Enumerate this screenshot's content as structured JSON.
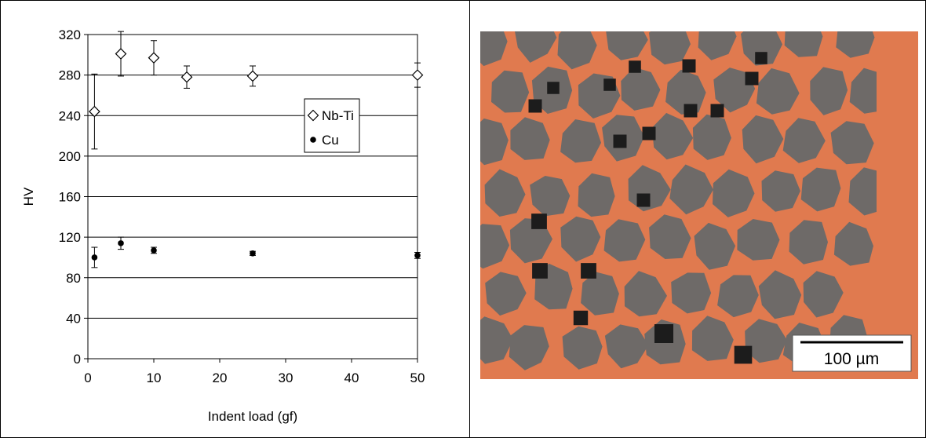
{
  "chart_data": {
    "type": "scatter",
    "xlabel": "Indent load (gf)",
    "ylabel": "HV",
    "xlim": [
      0,
      50
    ],
    "ylim": [
      0,
      320
    ],
    "x_ticks": [
      0,
      10,
      20,
      30,
      40,
      50
    ],
    "y_ticks": [
      0,
      40,
      80,
      120,
      160,
      200,
      240,
      280,
      320
    ],
    "grid": "horizontal",
    "legend_position": "right, upper-middle",
    "series": [
      {
        "name": "Nb-Ti",
        "marker": "open-diamond",
        "color": "#000000",
        "points": [
          {
            "x": 1,
            "y": 244,
            "err": 37
          },
          {
            "x": 5,
            "y": 301,
            "err": 22
          },
          {
            "x": 10,
            "y": 297,
            "err": 17
          },
          {
            "x": 15,
            "y": 278,
            "err": 11
          },
          {
            "x": 25,
            "y": 279,
            "err": 10
          },
          {
            "x": 50,
            "y": 280,
            "err": 12
          }
        ]
      },
      {
        "name": "Cu",
        "marker": "filled-circle",
        "color": "#000000",
        "points": [
          {
            "x": 1,
            "y": 100,
            "err": 10
          },
          {
            "x": 5,
            "y": 114,
            "err": 6
          },
          {
            "x": 10,
            "y": 107,
            "err": 3
          },
          {
            "x": 25,
            "y": 104,
            "err": 2
          },
          {
            "x": 50,
            "y": 102,
            "err": 3
          }
        ]
      }
    ]
  },
  "micrograph": {
    "scale_bar_label": "100 µm",
    "matrix_color": "#e07a4f",
    "filament_color": "#6e6a68",
    "indent_color": "#1c1c1c"
  }
}
